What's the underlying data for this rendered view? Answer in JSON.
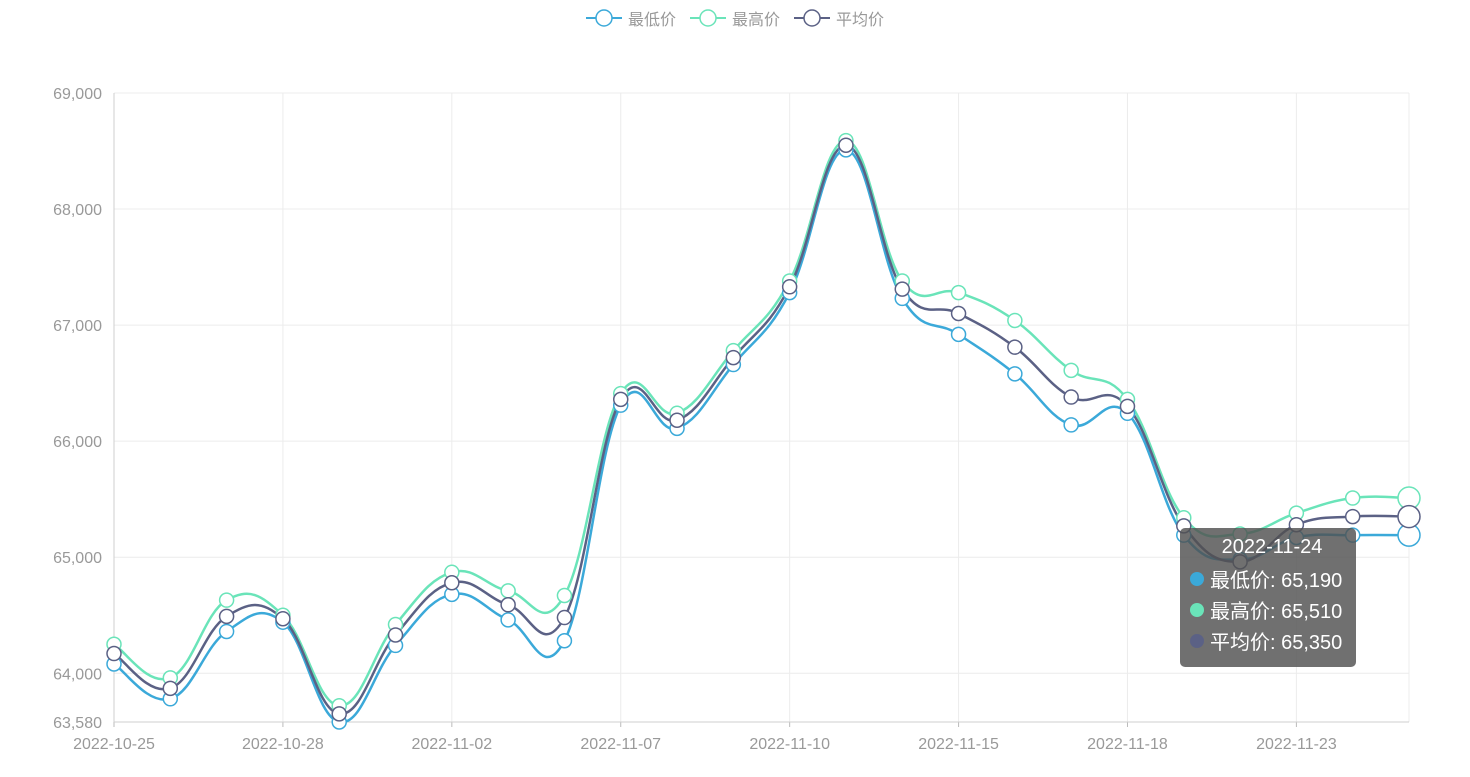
{
  "legend": {
    "items": [
      {
        "label": "最低价",
        "color": "#3ba9d9"
      },
      {
        "label": "最高价",
        "color": "#6ae4b9"
      },
      {
        "label": "平均价",
        "color": "#5b6185"
      }
    ]
  },
  "tooltip": {
    "date": "2022-11-24",
    "rows": [
      {
        "label": "最低价: 65,190",
        "color": "#3ba9d9"
      },
      {
        "label": "最高价: 65,510",
        "color": "#6ae4b9"
      },
      {
        "label": "平均价: 65,350",
        "color": "#5b6185"
      }
    ]
  },
  "chart_data": {
    "type": "line",
    "smooth": true,
    "x": [
      "2022-10-25",
      "2022-10-26",
      "2022-10-27",
      "2022-10-28",
      "2022-10-29",
      "2022-10-31",
      "2022-11-01",
      "2022-11-02",
      "2022-11-03",
      "2022-11-04",
      "2022-11-07",
      "2022-11-08",
      "2022-11-09",
      "2022-11-10",
      "2022-11-11",
      "2022-11-14",
      "2022-11-15",
      "2022-11-16",
      "2022-11-17",
      "2022-11-18",
      "2022-11-21",
      "2022-11-22",
      "2022-11-23",
      "2022-11-24"
    ],
    "x_tick_labels": [
      "2022-10-25",
      "2022-10-28",
      "2022-11-02",
      "2022-11-07",
      "2022-11-10",
      "2022-11-15",
      "2022-11-18",
      "2022-11-23"
    ],
    "x_tick_every": 3,
    "ylim": [
      63580,
      69000
    ],
    "y_ticks": [
      63580,
      64000,
      65000,
      66000,
      67000,
      68000,
      69000
    ],
    "y_tick_labels": [
      "63,580",
      "64,000",
      "65,000",
      "66,000",
      "67,000",
      "68,000",
      "69,000"
    ],
    "grid": true,
    "legend_position": "top-center",
    "series": [
      {
        "name": "最低价",
        "color": "#3ba9d9",
        "values": [
          64080,
          63780,
          64360,
          64440,
          63580,
          64240,
          64680,
          64460,
          64280,
          66310,
          66110,
          66660,
          67280,
          68510,
          67230,
          66920,
          66580,
          66140,
          66240,
          65190,
          64980,
          65170,
          65190,
          65190
        ]
      },
      {
        "name": "最高价",
        "color": "#6ae4b9",
        "values": [
          64250,
          63960,
          64630,
          64500,
          63720,
          64420,
          64870,
          64710,
          64670,
          66410,
          66240,
          66780,
          67380,
          68590,
          67380,
          67280,
          67040,
          66610,
          66360,
          65340,
          65200,
          65380,
          65510,
          65510
        ]
      },
      {
        "name": "平均价",
        "color": "#5b6185",
        "values": [
          64170,
          63870,
          64490,
          64470,
          63650,
          64330,
          64780,
          64590,
          64480,
          66360,
          66180,
          66720,
          67330,
          68550,
          67310,
          67100,
          66810,
          66380,
          66300,
          65270,
          64960,
          65280,
          65350,
          65350
        ]
      }
    ]
  }
}
